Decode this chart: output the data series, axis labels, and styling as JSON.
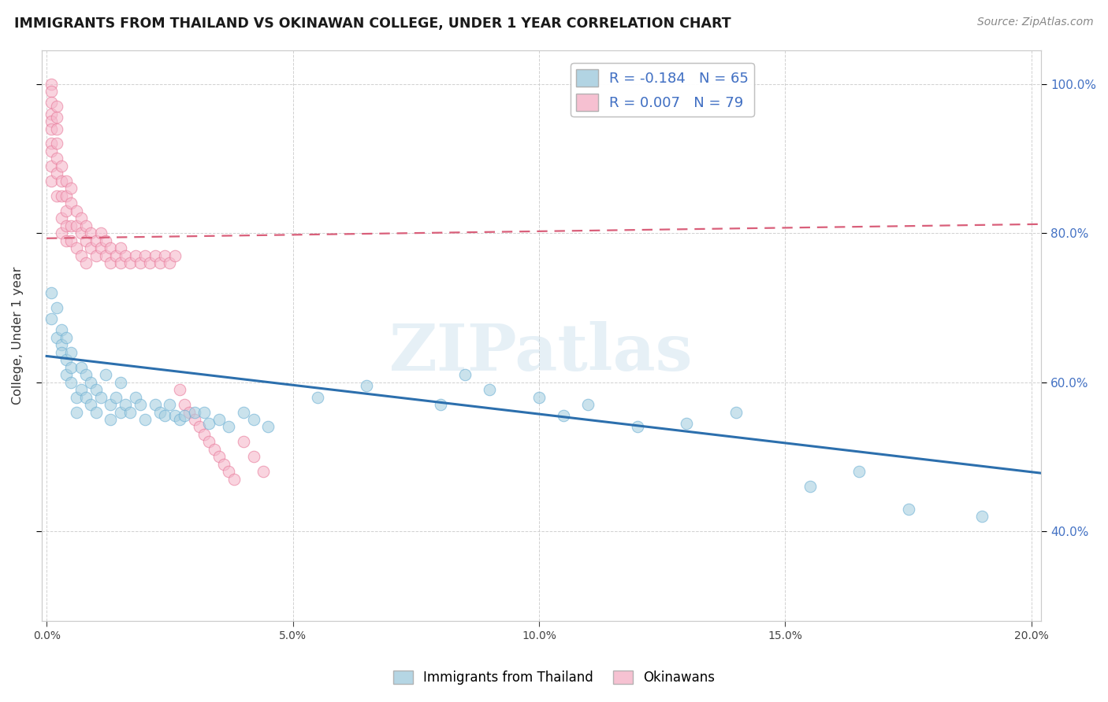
{
  "title": "IMMIGRANTS FROM THAILAND VS OKINAWAN COLLEGE, UNDER 1 YEAR CORRELATION CHART",
  "source": "Source: ZipAtlas.com",
  "ylabel": "College, Under 1 year",
  "xlim_min": -0.001,
  "xlim_max": 0.202,
  "ylim_min": 0.28,
  "ylim_max": 1.045,
  "background_color": "#ffffff",
  "grid_color": "#cccccc",
  "blue_R": -0.184,
  "blue_N": 65,
  "pink_R": 0.007,
  "pink_N": 79,
  "blue_color": "#a8cfe0",
  "pink_color": "#f5b8cb",
  "blue_edge_color": "#6aafd4",
  "pink_edge_color": "#e87899",
  "blue_line_color": "#2c6fad",
  "pink_line_color": "#d95f7a",
  "blue_line_y0": 0.635,
  "blue_line_y1": 0.478,
  "pink_line_y0": 0.793,
  "pink_line_y1": 0.812,
  "watermark": "ZIPatlas",
  "watermark_color": "#b8d4e8",
  "legend_label_color": "#4472c4",
  "right_tick_color": "#4472c4",
  "blue_points_x": [
    0.001,
    0.001,
    0.002,
    0.002,
    0.003,
    0.003,
    0.003,
    0.004,
    0.004,
    0.004,
    0.005,
    0.005,
    0.005,
    0.006,
    0.006,
    0.007,
    0.007,
    0.008,
    0.008,
    0.009,
    0.009,
    0.01,
    0.01,
    0.011,
    0.012,
    0.013,
    0.013,
    0.014,
    0.015,
    0.015,
    0.016,
    0.017,
    0.018,
    0.019,
    0.02,
    0.022,
    0.023,
    0.024,
    0.025,
    0.026,
    0.027,
    0.028,
    0.03,
    0.032,
    0.033,
    0.035,
    0.037,
    0.04,
    0.042,
    0.045,
    0.055,
    0.065,
    0.08,
    0.085,
    0.09,
    0.1,
    0.105,
    0.11,
    0.12,
    0.13,
    0.14,
    0.155,
    0.165,
    0.175,
    0.19
  ],
  "blue_points_y": [
    0.685,
    0.72,
    0.66,
    0.7,
    0.65,
    0.67,
    0.64,
    0.66,
    0.63,
    0.61,
    0.64,
    0.62,
    0.6,
    0.58,
    0.56,
    0.62,
    0.59,
    0.61,
    0.58,
    0.6,
    0.57,
    0.59,
    0.56,
    0.58,
    0.61,
    0.57,
    0.55,
    0.58,
    0.6,
    0.56,
    0.57,
    0.56,
    0.58,
    0.57,
    0.55,
    0.57,
    0.56,
    0.555,
    0.57,
    0.555,
    0.55,
    0.555,
    0.56,
    0.56,
    0.545,
    0.55,
    0.54,
    0.56,
    0.55,
    0.54,
    0.58,
    0.595,
    0.57,
    0.61,
    0.59,
    0.58,
    0.555,
    0.57,
    0.54,
    0.545,
    0.56,
    0.46,
    0.48,
    0.43,
    0.42
  ],
  "pink_points_x": [
    0.001,
    0.001,
    0.001,
    0.001,
    0.001,
    0.001,
    0.001,
    0.001,
    0.001,
    0.001,
    0.002,
    0.002,
    0.002,
    0.002,
    0.002,
    0.002,
    0.002,
    0.003,
    0.003,
    0.003,
    0.003,
    0.003,
    0.004,
    0.004,
    0.004,
    0.004,
    0.004,
    0.005,
    0.005,
    0.005,
    0.005,
    0.006,
    0.006,
    0.006,
    0.007,
    0.007,
    0.007,
    0.008,
    0.008,
    0.008,
    0.009,
    0.009,
    0.01,
    0.01,
    0.011,
    0.011,
    0.012,
    0.012,
    0.013,
    0.013,
    0.014,
    0.015,
    0.015,
    0.016,
    0.017,
    0.018,
    0.019,
    0.02,
    0.021,
    0.022,
    0.023,
    0.024,
    0.025,
    0.026,
    0.027,
    0.028,
    0.029,
    0.03,
    0.031,
    0.032,
    0.033,
    0.034,
    0.035,
    0.036,
    0.037,
    0.038,
    0.04,
    0.042,
    0.044
  ],
  "pink_points_y": [
    1.0,
    0.99,
    0.975,
    0.96,
    0.95,
    0.94,
    0.92,
    0.91,
    0.89,
    0.87,
    0.97,
    0.955,
    0.94,
    0.92,
    0.9,
    0.88,
    0.85,
    0.89,
    0.87,
    0.85,
    0.82,
    0.8,
    0.87,
    0.85,
    0.83,
    0.81,
    0.79,
    0.86,
    0.84,
    0.81,
    0.79,
    0.83,
    0.81,
    0.78,
    0.82,
    0.8,
    0.77,
    0.81,
    0.79,
    0.76,
    0.8,
    0.78,
    0.79,
    0.77,
    0.8,
    0.78,
    0.79,
    0.77,
    0.78,
    0.76,
    0.77,
    0.78,
    0.76,
    0.77,
    0.76,
    0.77,
    0.76,
    0.77,
    0.76,
    0.77,
    0.76,
    0.77,
    0.76,
    0.77,
    0.59,
    0.57,
    0.56,
    0.55,
    0.54,
    0.53,
    0.52,
    0.51,
    0.5,
    0.49,
    0.48,
    0.47,
    0.52,
    0.5,
    0.48
  ]
}
